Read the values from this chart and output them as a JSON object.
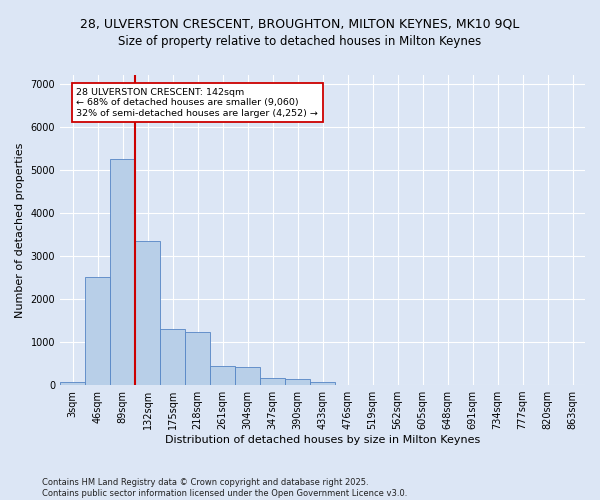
{
  "title_line1": "28, ULVERSTON CRESCENT, BROUGHTON, MILTON KEYNES, MK10 9QL",
  "title_line2": "Size of property relative to detached houses in Milton Keynes",
  "xlabel": "Distribution of detached houses by size in Milton Keynes",
  "ylabel": "Number of detached properties",
  "footer_line1": "Contains HM Land Registry data © Crown copyright and database right 2025.",
  "footer_line2": "Contains public sector information licensed under the Open Government Licence v3.0.",
  "bar_labels": [
    "3sqm",
    "46sqm",
    "89sqm",
    "132sqm",
    "175sqm",
    "218sqm",
    "261sqm",
    "304sqm",
    "347sqm",
    "390sqm",
    "433sqm",
    "476sqm",
    "519sqm",
    "562sqm",
    "605sqm",
    "648sqm",
    "691sqm",
    "734sqm",
    "777sqm",
    "820sqm",
    "863sqm"
  ],
  "bar_values": [
    80,
    2500,
    5250,
    3350,
    1300,
    1230,
    450,
    430,
    160,
    130,
    70,
    10,
    0,
    0,
    0,
    0,
    0,
    0,
    0,
    0,
    0
  ],
  "bar_color": "#b8cfe8",
  "bar_edgecolor": "#5585c5",
  "bar_width": 1.0,
  "vline_x": 2.5,
  "vline_color": "#cc0000",
  "annotation_line1": "28 ULVERSTON CRESCENT: 142sqm",
  "annotation_line2": "← 68% of detached houses are smaller (9,060)",
  "annotation_line3": "32% of semi-detached houses are larger (4,252) →",
  "annotation_box_color": "#ffffff",
  "annotation_box_edgecolor": "#cc0000",
  "ylim": [
    0,
    7200
  ],
  "yticks": [
    0,
    1000,
    2000,
    3000,
    4000,
    5000,
    6000,
    7000
  ],
  "background_color": "#dce6f5",
  "plot_bg_color": "#dce6f5",
  "grid_color": "#ffffff",
  "title_fontsize": 9,
  "subtitle_fontsize": 8.5,
  "axis_label_fontsize": 8,
  "tick_fontsize": 7,
  "footer_fontsize": 6
}
